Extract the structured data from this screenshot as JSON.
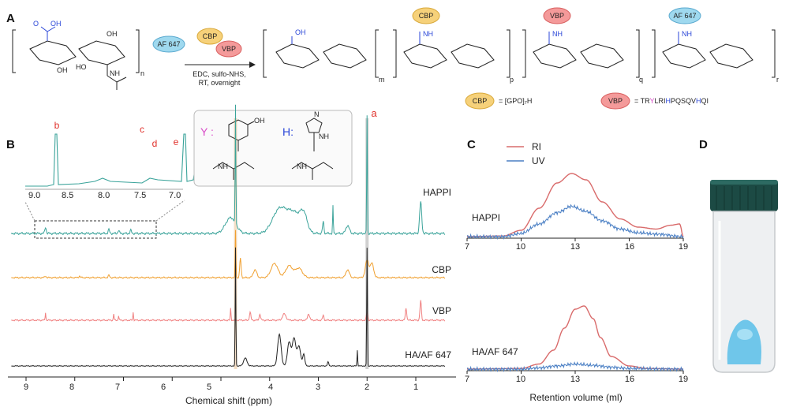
{
  "panels": {
    "a": "A",
    "b": "B",
    "c": "C",
    "d": "D"
  },
  "panel_a": {
    "reagents": {
      "dye": "AF 647",
      "cbp": "CBP",
      "vbp": "VBP"
    },
    "conditions": [
      "EDC, sulfo-NHS,",
      "RT, overnight"
    ],
    "subscripts": {
      "n": "n",
      "m": "m",
      "p": "p",
      "q": "q",
      "r": "r"
    },
    "atoms": {
      "oh": "OH",
      "o": "O",
      "ho": "HO",
      "nh": "NH",
      "nh2": "NH"
    },
    "peptide_legend": {
      "cbp_label": "CBP",
      "cbp_seq": "= [GPO]₇H",
      "vbp_label": "VBP",
      "vbp_prefix": "= TR",
      "vbp_y": "Y",
      "vbp_mid": "LRI",
      "vbp_h1": "H",
      "vbp_mid2": "PQSQV",
      "vbp_h2": "H",
      "vbp_end": "QI"
    }
  },
  "panel_b": {
    "xlabel": "Chemical shift (ppm)",
    "x_ticks": [
      "9",
      "8",
      "7",
      "6",
      "5",
      "4",
      "3",
      "2",
      "1"
    ],
    "inset_ticks": [
      "9.0",
      "8.5",
      "8.0",
      "7.5",
      "7.0"
    ],
    "peak_labels": {
      "a": "a",
      "b": "b",
      "c": "c",
      "d": "d",
      "e": "e"
    },
    "residues": {
      "y": "Y :",
      "h": "H:",
      "oh": "OH",
      "nh": "NH",
      "n": "N"
    },
    "traces": [
      "HAPPI",
      "CBP",
      "VBP",
      "HA/AF 647"
    ],
    "colors": {
      "happi": "#3aa39a",
      "cbp": "#f0a030",
      "vbp": "#f08080",
      "ha": "#222222"
    }
  },
  "chart_data": {
    "type": "line",
    "title": "",
    "xlabel": "Retention volume (ml)",
    "ylabel": "",
    "x_ticks": [
      "7",
      "10",
      "13",
      "16",
      "19"
    ],
    "xlim": [
      7,
      19
    ],
    "legend": [
      "RI",
      "UV"
    ],
    "legend_position": "top-right",
    "samples": [
      {
        "name": "HAPPI",
        "series": [
          {
            "name": "RI",
            "color": "#d96b6b",
            "x": [
              7,
              9,
              10,
              11,
              12,
              12.8,
              13.6,
              14.5,
              15.5,
              16.5,
              17.5,
              18.3,
              18.8,
              19
            ],
            "y": [
              0,
              0.01,
              0.1,
              0.45,
              0.85,
              1.0,
              0.9,
              0.55,
              0.28,
              0.15,
              0.12,
              0.18,
              0.2,
              0
            ]
          },
          {
            "name": "UV",
            "color": "#4a7fc4",
            "x": [
              7,
              9,
              10,
              11,
              12,
              12.8,
              13.6,
              14.5,
              15.5,
              16.5,
              17.5,
              19
            ],
            "y": [
              0,
              0,
              0.05,
              0.2,
              0.38,
              0.48,
              0.4,
              0.25,
              0.12,
              0.06,
              0.04,
              0
            ]
          }
        ]
      },
      {
        "name": "HA/AF 647",
        "series": [
          {
            "name": "RI",
            "color": "#d96b6b",
            "x": [
              7,
              10,
              11,
              11.8,
              12.4,
              13,
              13.5,
              14,
              14.4,
              15,
              16,
              17,
              19
            ],
            "y": [
              0,
              0.01,
              0.08,
              0.3,
              0.65,
              0.95,
              1.0,
              0.8,
              0.5,
              0.2,
              0.05,
              0.01,
              0
            ]
          },
          {
            "name": "UV",
            "color": "#4a7fc4",
            "x": [
              7,
              10,
              11,
              12,
              13,
              14,
              15,
              16,
              19
            ],
            "y": [
              0,
              0,
              0.02,
              0.05,
              0.08,
              0.06,
              0.03,
              0.01,
              0
            ]
          }
        ]
      }
    ]
  }
}
